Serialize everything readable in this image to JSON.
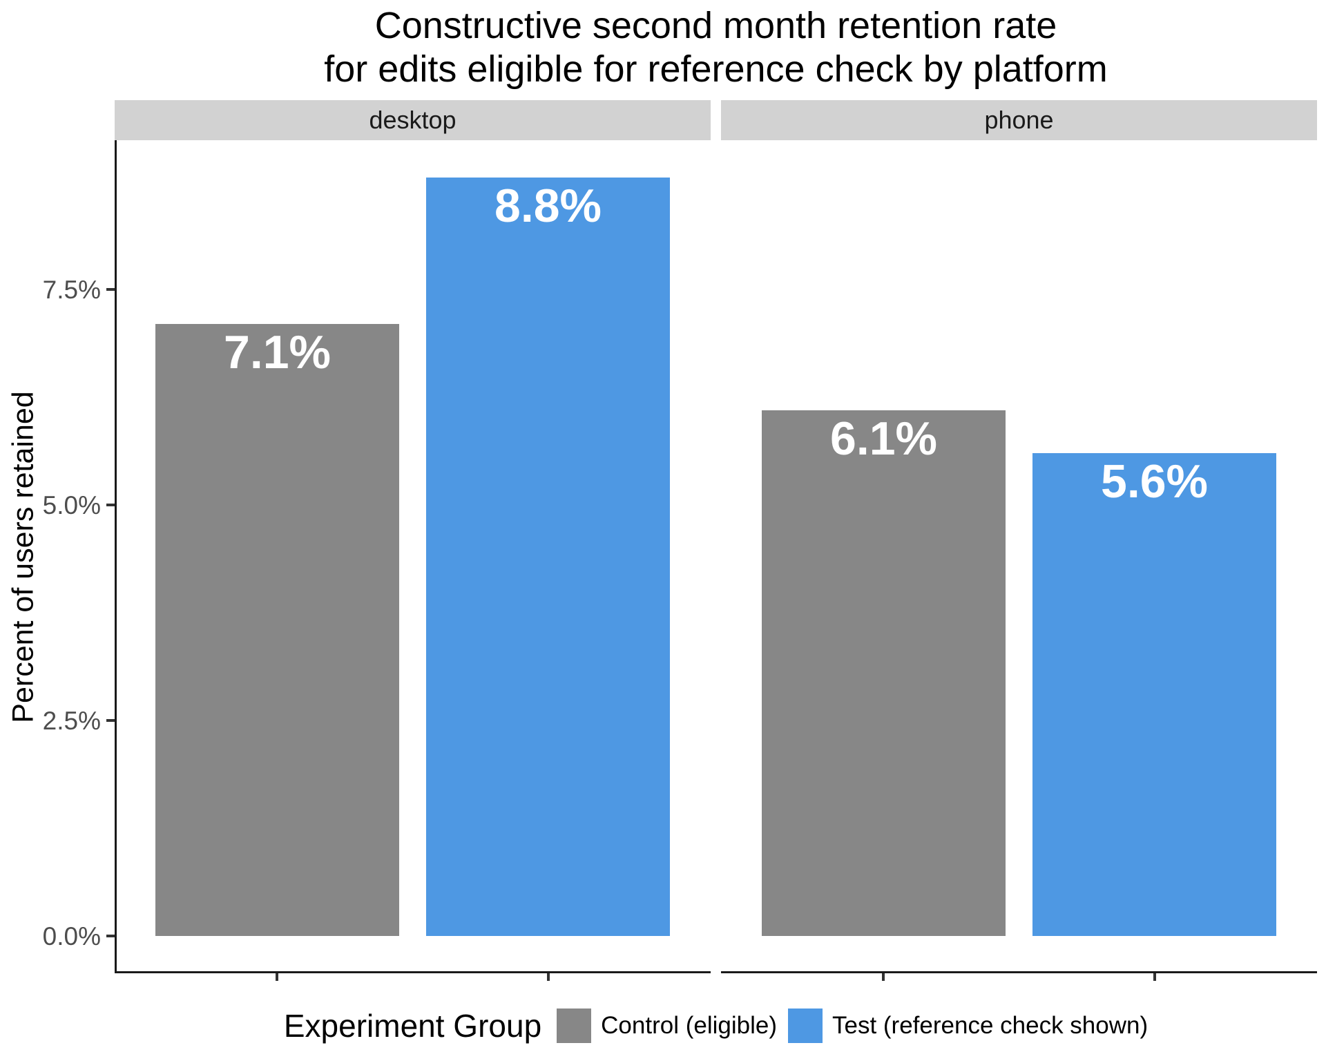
{
  "title": {
    "line1": "Constructive second month retention rate",
    "line2": "for edits eligible for reference check by platform"
  },
  "chart_data": {
    "type": "bar",
    "title": "Constructive second month retention rate for edits eligible for reference check by platform",
    "ylabel": "Percent of users retained",
    "xlabel": "",
    "facet_by": "platform",
    "ylim": [
      0,
      9.25
    ],
    "grid": false,
    "yticks": [
      {
        "value": 0.0,
        "label": "0.0%"
      },
      {
        "value": 2.5,
        "label": "2.5%"
      },
      {
        "value": 5.0,
        "label": "5.0%"
      },
      {
        "value": 7.5,
        "label": "7.5%"
      }
    ],
    "series_colors": {
      "control": "#878787",
      "test": "#4E98E3"
    },
    "facets": [
      {
        "label": "desktop",
        "bars": [
          {
            "series": "control",
            "group": "Control (eligible)",
            "value": 7.1,
            "label": "7.1%"
          },
          {
            "series": "test",
            "group": "Test (reference check shown)",
            "value": 8.8,
            "label": "8.8%"
          }
        ]
      },
      {
        "label": "phone",
        "bars": [
          {
            "series": "control",
            "group": "Control (eligible)",
            "value": 6.1,
            "label": "6.1%"
          },
          {
            "series": "test",
            "group": "Test (reference check shown)",
            "value": 5.6,
            "label": "5.6%"
          }
        ]
      }
    ],
    "legend_position": "bottom"
  },
  "legend": {
    "title": "Experiment Group",
    "items": [
      {
        "series": "control",
        "label": "Control (eligible)"
      },
      {
        "series": "test",
        "label": "Test (reference check shown)"
      }
    ]
  },
  "colors": {
    "bar_control": "#878787",
    "bar_test": "#4E98E3",
    "strip_fill": "#d2d2d2",
    "axis_line": "#1a1a1a",
    "tick_label": "#4d4d4d",
    "bar_label_text": "#ffffff",
    "background": "#ffffff"
  }
}
